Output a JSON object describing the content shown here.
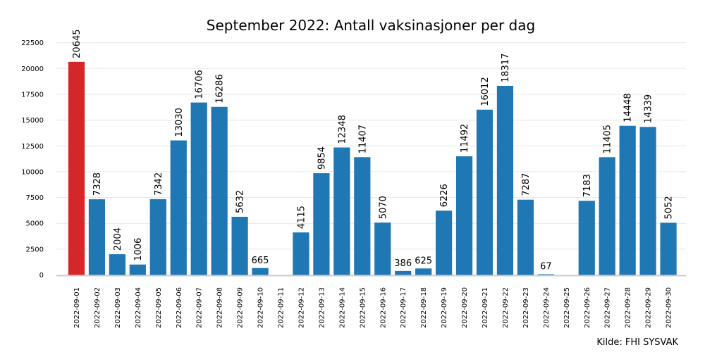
{
  "chart_data": {
    "type": "bar",
    "title": "September 2022: Antall vaksinasjoner per dag",
    "source": "Kilde: FHI SYSVAK",
    "xlabel": "",
    "ylabel": "",
    "ylim": [
      0,
      23500
    ],
    "yticks": [
      0,
      2500,
      5000,
      7500,
      10000,
      12500,
      15000,
      17500,
      20000,
      22500
    ],
    "grid": true,
    "colors": {
      "default": "#1f77b4",
      "highlight": "#d62728",
      "grid": "#e8e8e8"
    },
    "highlight_index": 0,
    "categories": [
      "2022-09-01",
      "2022-09-02",
      "2022-09-03",
      "2022-09-04",
      "2022-09-05",
      "2022-09-06",
      "2022-09-07",
      "2022-09-08",
      "2022-09-09",
      "2022-09-10",
      "2022-09-11",
      "2022-09-12",
      "2022-09-13",
      "2022-09-14",
      "2022-09-15",
      "2022-09-16",
      "2022-09-17",
      "2022-09-18",
      "2022-09-19",
      "2022-09-20",
      "2022-09-21",
      "2022-09-22",
      "2022-09-23",
      "2022-09-24",
      "2022-09-25",
      "2022-09-26",
      "2022-09-27",
      "2022-09-28",
      "2022-09-29",
      "2022-09-30"
    ],
    "values": [
      20645,
      7328,
      2004,
      1006,
      7342,
      13030,
      16706,
      16286,
      5632,
      665,
      null,
      4115,
      9854,
      12348,
      11407,
      5070,
      386,
      625,
      6226,
      11492,
      16012,
      18317,
      7287,
      67,
      null,
      7183,
      11405,
      14448,
      14339,
      5052
    ]
  }
}
